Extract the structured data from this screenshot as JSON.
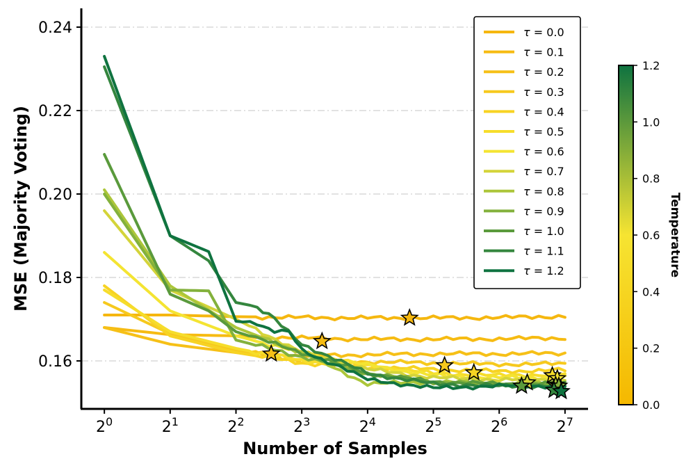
{
  "chart_data": {
    "type": "line",
    "xlabel": "Number of Samples",
    "ylabel": "MSE (Majority Voting)",
    "x_scale": "log2",
    "xlim_log2": [
      -0.35,
      7.35
    ],
    "ylim": [
      0.1485,
      0.2445
    ],
    "x_ticks": [
      {
        "base": "2",
        "exp": "0",
        "value": 1
      },
      {
        "base": "2",
        "exp": "1",
        "value": 2
      },
      {
        "base": "2",
        "exp": "2",
        "value": 4
      },
      {
        "base": "2",
        "exp": "3",
        "value": 8
      },
      {
        "base": "2",
        "exp": "4",
        "value": 16
      },
      {
        "base": "2",
        "exp": "5",
        "value": 32
      },
      {
        "base": "2",
        "exp": "6",
        "value": 64
      },
      {
        "base": "2",
        "exp": "7",
        "value": 128
      }
    ],
    "y_ticks": [
      {
        "label": "0.16",
        "value": 0.16
      },
      {
        "label": "0.18",
        "value": 0.18
      },
      {
        "label": "0.20",
        "value": 0.2
      },
      {
        "label": "0.22",
        "value": 0.22
      },
      {
        "label": "0.24",
        "value": 0.24
      }
    ],
    "grid": "horizontal dash-dot",
    "legend_position": "top-right",
    "colorbar": {
      "label": "Temperature",
      "range": [
        0.0,
        1.2
      ],
      "ticks": [
        "0.0",
        "0.2",
        "0.4",
        "0.6",
        "0.8",
        "1.0",
        "1.2"
      ],
      "color_low": "#f5b800",
      "color_mid": "#f6e432",
      "color_high": "#0f7340"
    },
    "series": [
      {
        "name": "τ = 0.0",
        "tau": "0.0",
        "color": "#f5b70f",
        "points": [
          [
            1,
            0.171
          ],
          [
            2,
            0.171
          ],
          [
            4,
            0.1706
          ],
          [
            8,
            0.1704
          ],
          [
            16,
            0.1703
          ],
          [
            32,
            0.1703
          ],
          [
            64,
            0.1704
          ],
          [
            128,
            0.1707
          ]
        ],
        "best": [
          24.9,
          0.1703
        ]
      },
      {
        "name": "τ = 0.1",
        "tau": "0.1",
        "color": "#f6bb12",
        "points": [
          [
            1,
            0.168
          ],
          [
            2,
            0.1663
          ],
          [
            4,
            0.166
          ],
          [
            8,
            0.1655
          ],
          [
            16,
            0.1652
          ],
          [
            32,
            0.1652
          ],
          [
            64,
            0.1653
          ],
          [
            128,
            0.1655
          ]
        ],
        "best": [
          9.9,
          0.1647
        ]
      },
      {
        "name": "τ = 0.2",
        "tau": "0.2",
        "color": "#f6c017",
        "points": [
          [
            1,
            0.168
          ],
          [
            2,
            0.164
          ],
          [
            4,
            0.162
          ],
          [
            8,
            0.1612
          ],
          [
            16,
            0.1615
          ],
          [
            32,
            0.1617
          ],
          [
            64,
            0.1617
          ],
          [
            128,
            0.1618
          ]
        ],
        "best": [
          5.8,
          0.1617
        ]
      },
      {
        "name": "τ = 0.3",
        "tau": "0.3",
        "color": "#f6c91d",
        "points": [
          [
            1,
            0.174
          ],
          [
            2,
            0.1665
          ],
          [
            4,
            0.1625
          ],
          [
            8,
            0.16
          ],
          [
            16,
            0.1598
          ],
          [
            32,
            0.1595
          ],
          [
            64,
            0.1592
          ],
          [
            128,
            0.1593
          ]
        ],
        "best": [
          36.0,
          0.1589
        ]
      },
      {
        "name": "τ = 0.4",
        "tau": "0.4",
        "color": "#f7d323",
        "points": [
          [
            1,
            0.178
          ],
          [
            2,
            0.166
          ],
          [
            4,
            0.162
          ],
          [
            8,
            0.1595
          ],
          [
            16,
            0.1585
          ],
          [
            32,
            0.158
          ],
          [
            64,
            0.1575
          ],
          [
            128,
            0.1578
          ]
        ],
        "best": [
          49.0,
          0.1572
        ]
      },
      {
        "name": "τ = 0.5",
        "tau": "0.5",
        "color": "#f6dd2b",
        "points": [
          [
            1,
            0.177
          ],
          [
            2,
            0.167
          ],
          [
            4,
            0.163
          ],
          [
            8,
            0.16
          ],
          [
            16,
            0.159
          ],
          [
            32,
            0.157
          ],
          [
            64,
            0.1565
          ],
          [
            128,
            0.1568
          ]
        ],
        "best": [
          112.0,
          0.1565
        ]
      },
      {
        "name": "τ = 0.6",
        "tau": "0.6",
        "color": "#f4e432",
        "points": [
          [
            1,
            0.186
          ],
          [
            2,
            0.172
          ],
          [
            4,
            0.166
          ],
          [
            8,
            0.162
          ],
          [
            16,
            0.159
          ],
          [
            32,
            0.1565
          ],
          [
            64,
            0.156
          ],
          [
            128,
            0.156
          ]
        ],
        "best": [
          118.0,
          0.1558
        ]
      },
      {
        "name": "τ = 0.7",
        "tau": "0.7",
        "color": "#d4d43a",
        "points": [
          [
            1,
            0.196
          ],
          [
            2,
            0.177
          ],
          [
            4,
            0.17
          ],
          [
            8,
            0.162
          ],
          [
            16,
            0.158
          ],
          [
            32,
            0.156
          ],
          [
            64,
            0.1555
          ],
          [
            128,
            0.1555
          ]
        ],
        "best": [
          86.0,
          0.1548
        ]
      },
      {
        "name": "τ = 0.8",
        "tau": "0.8",
        "color": "#acc63a",
        "points": [
          [
            1,
            0.201
          ],
          [
            2,
            0.178
          ],
          [
            4,
            0.168
          ],
          [
            8,
            0.162
          ],
          [
            16,
            0.1545
          ],
          [
            32,
            0.155
          ],
          [
            64,
            0.1545
          ],
          [
            128,
            0.1545
          ]
        ],
        "best": [
          116.0,
          0.1542
        ]
      },
      {
        "name": "τ = 0.9",
        "tau": "0.9",
        "color": "#83b13c",
        "points": [
          [
            1,
            0.2
          ],
          [
            2,
            0.177
          ],
          [
            3,
            0.1768
          ],
          [
            4,
            0.165
          ],
          [
            8,
            0.161
          ],
          [
            16,
            0.157
          ],
          [
            32,
            0.155
          ],
          [
            64,
            0.1545
          ],
          [
            128,
            0.1545
          ]
        ],
        "best": [
          120.0,
          0.154
        ]
      },
      {
        "name": "τ = 1.0",
        "tau": "1.0",
        "color": "#5a9a3c",
        "points": [
          [
            1,
            0.2095
          ],
          [
            2,
            0.176
          ],
          [
            3,
            0.172
          ],
          [
            4,
            0.167
          ],
          [
            8,
            0.162
          ],
          [
            16,
            0.157
          ],
          [
            32,
            0.155
          ],
          [
            64,
            0.1545
          ],
          [
            128,
            0.1545
          ]
        ],
        "best": [
          81.0,
          0.154
        ]
      },
      {
        "name": "τ = 1.1",
        "tau": "1.1",
        "color": "#34863e",
        "points": [
          [
            1,
            0.2305
          ],
          [
            2,
            0.19
          ],
          [
            3,
            0.184
          ],
          [
            4,
            0.174
          ],
          [
            5,
            0.173
          ],
          [
            6,
            0.17
          ],
          [
            8,
            0.164
          ],
          [
            16,
            0.157
          ],
          [
            32,
            0.1545
          ],
          [
            64,
            0.154
          ],
          [
            128,
            0.154
          ]
        ],
        "best": [
          114.0,
          0.153
        ]
      },
      {
        "name": "τ = 1.2",
        "tau": "1.2",
        "color": "#0f7340",
        "points": [
          [
            1,
            0.233
          ],
          [
            2,
            0.19
          ],
          [
            3,
            0.1862
          ],
          [
            4,
            0.1695
          ],
          [
            5,
            0.169
          ],
          [
            6,
            0.167
          ],
          [
            7,
            0.167
          ],
          [
            8,
            0.1625
          ],
          [
            12,
            0.1585
          ],
          [
            16,
            0.1555
          ],
          [
            32,
            0.1535
          ],
          [
            64,
            0.154
          ],
          [
            128,
            0.154
          ]
        ],
        "best": [
          123.0,
          0.1527
        ]
      }
    ]
  }
}
